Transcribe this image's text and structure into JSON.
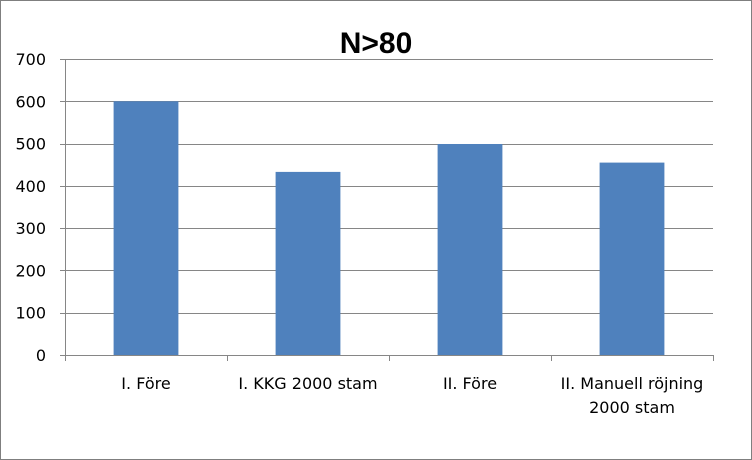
{
  "chart_data": {
    "type": "bar",
    "title": "N>80",
    "categories": [
      [
        "I. Före"
      ],
      [
        "I. KKG 2000 stam"
      ],
      [
        "II. Före"
      ],
      [
        "II. Manuell röjning",
        "2000 stam"
      ]
    ],
    "values": [
      600,
      433,
      499,
      455
    ],
    "yticks": [
      "0",
      "100",
      "200",
      "300",
      "400",
      "500",
      "600",
      "700"
    ],
    "ylim": [
      0,
      700
    ],
    "grid": true,
    "legend": "none",
    "bar_color": "#4f81bd",
    "grid_color": "#868686"
  }
}
